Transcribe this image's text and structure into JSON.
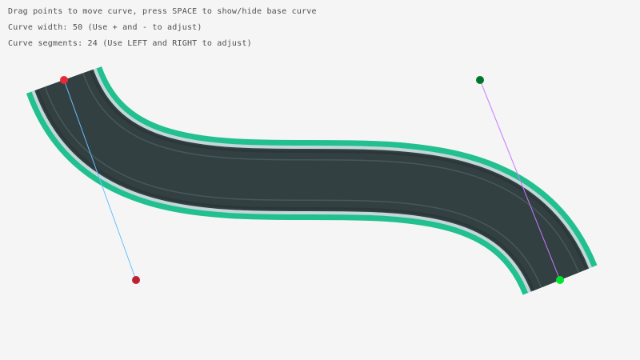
{
  "instructions": [
    "Drag points to move curve, press SPACE to show/hide base curve",
    "Curve width: 50 (Use + and - to adjust)",
    "Curve segments: 24 (Use LEFT and RIGHT to adjust)"
  ],
  "curve": {
    "width": 50,
    "segments": 24,
    "start": [
      80,
      100
    ],
    "start_tangent": [
      170,
      350
    ],
    "end_tangent": [
      600,
      100
    ],
    "end": [
      700,
      350
    ]
  },
  "colors": {
    "background": "#f5f5f5",
    "road_edge": "#22c08f",
    "road_border": "#c3d6da",
    "road": "#334042",
    "lane_line": "#46585b",
    "start_point": "#e62937",
    "start_tangent_point": "#be2134",
    "end_tangent_point": "#00752c",
    "end_point": "#00e430",
    "start_tangent_line": "#66bfff",
    "end_tangent_line": "#c87aff"
  }
}
